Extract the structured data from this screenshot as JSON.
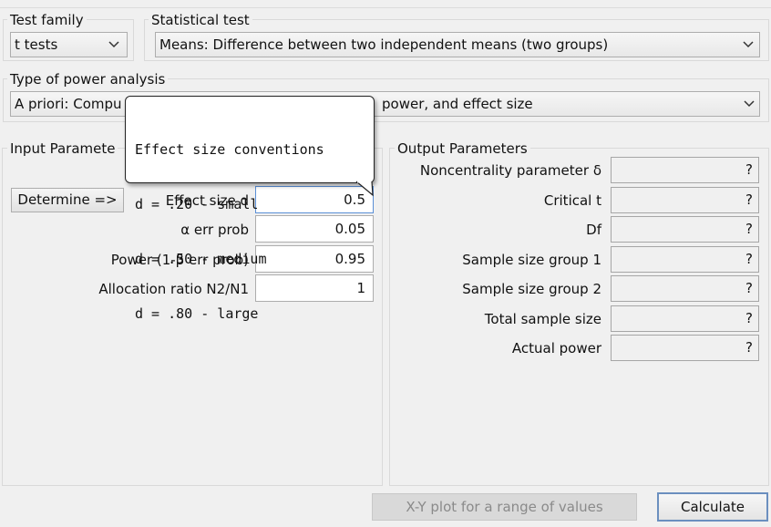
{
  "test_family": {
    "label": "Test family",
    "value": "t tests"
  },
  "statistical_test": {
    "label": "Statistical test",
    "value": "Means: Difference between two independent means (two groups)"
  },
  "power_analysis": {
    "label": "Type of power analysis",
    "value_visible_start": "A priori: Compu",
    "value_visible_end": "power, and effect size"
  },
  "input": {
    "title": "Input Parameters",
    "title_visible": "Input Paramete",
    "determine_label": "Determine =>",
    "rows": [
      {
        "label": "Effect size d",
        "value": "0.5",
        "visible_value": "0.5"
      },
      {
        "label": "α err prob",
        "value": "0.05"
      },
      {
        "label": "Power (1-β err prob)",
        "value": "0.95"
      },
      {
        "label": "Allocation ratio N2/N1",
        "value": "1"
      }
    ]
  },
  "output": {
    "title": "Output Parameters",
    "rows": [
      {
        "label": "Noncentrality parameter δ",
        "value": "?"
      },
      {
        "label": "Critical t",
        "value": "?"
      },
      {
        "label": "Df",
        "value": "?"
      },
      {
        "label": "Sample size group 1",
        "value": "?"
      },
      {
        "label": "Sample size group 2",
        "value": "?"
      },
      {
        "label": "Total sample size",
        "value": "?"
      },
      {
        "label": "Actual power",
        "value": "?"
      }
    ]
  },
  "tooltip": {
    "lines": [
      "Effect size conventions",
      "d = .20 - small",
      "d = .50 - medium",
      "d = .80 - large"
    ]
  },
  "buttons": {
    "xy_plot": "X-Y plot for a range of values",
    "calculate": "Calculate"
  }
}
